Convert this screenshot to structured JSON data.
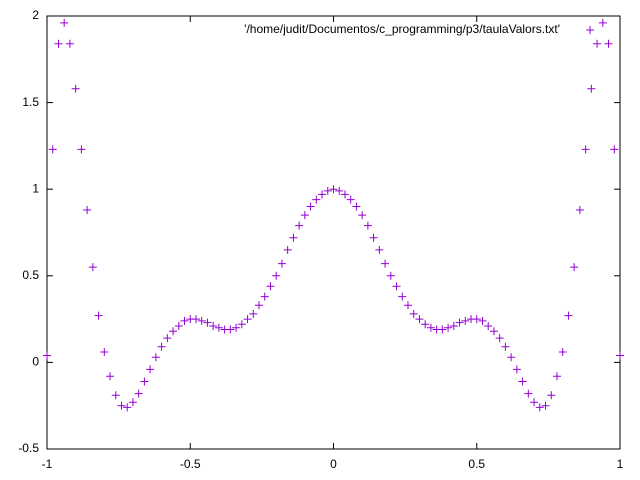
{
  "chart_data": {
    "type": "scatter",
    "x": [
      -1,
      -0.98,
      -0.96,
      -0.94,
      -0.92,
      -0.9,
      -0.88,
      -0.86,
      -0.84,
      -0.82,
      -0.8,
      -0.78,
      -0.76,
      -0.74,
      -0.72,
      -0.7,
      -0.68,
      -0.66,
      -0.64,
      -0.62,
      -0.6,
      -0.58,
      -0.56,
      -0.54,
      -0.52,
      -0.5,
      -0.48,
      -0.46,
      -0.44,
      -0.42,
      -0.4,
      -0.38,
      -0.36,
      -0.34,
      -0.32,
      -0.3,
      -0.28,
      -0.26,
      -0.24,
      -0.22,
      -0.2,
      -0.18,
      -0.16,
      -0.14,
      -0.12,
      -0.1,
      -0.08,
      -0.06,
      -0.04,
      -0.02,
      0,
      0.02,
      0.04,
      0.06,
      0.08,
      0.1,
      0.12,
      0.14,
      0.16,
      0.18,
      0.2,
      0.22,
      0.24,
      0.26,
      0.28,
      0.3,
      0.32,
      0.34,
      0.36,
      0.38,
      0.4,
      0.42,
      0.44,
      0.46,
      0.48,
      0.5,
      0.52,
      0.54,
      0.56,
      0.58,
      0.6,
      0.62,
      0.64,
      0.66,
      0.68,
      0.7,
      0.72,
      0.74,
      0.76,
      0.78,
      0.8,
      0.82,
      0.84,
      0.86,
      0.88,
      0.9,
      0.92,
      0.94,
      0.96,
      0.98,
      1
    ],
    "series": [
      {
        "name": "'/home/judit/Documentos/c_programming/p3/taulaValors.txt'",
        "color": "#9400d3",
        "values": [
          0.04,
          1.23,
          1.84,
          1.96,
          1.84,
          1.58,
          1.23,
          0.88,
          0.55,
          0.27,
          0.06,
          -0.08,
          -0.19,
          -0.25,
          -0.26,
          -0.23,
          -0.18,
          -0.11,
          -0.04,
          0.03,
          0.09,
          0.14,
          0.18,
          0.21,
          0.24,
          0.25,
          0.25,
          0.24,
          0.23,
          0.21,
          0.2,
          0.19,
          0.19,
          0.2,
          0.22,
          0.25,
          0.28,
          0.33,
          0.38,
          0.44,
          0.5,
          0.57,
          0.65,
          0.72,
          0.79,
          0.85,
          0.9,
          0.94,
          0.97,
          0.99,
          1.0,
          0.99,
          0.97,
          0.94,
          0.9,
          0.85,
          0.79,
          0.72,
          0.65,
          0.57,
          0.5,
          0.44,
          0.38,
          0.33,
          0.28,
          0.25,
          0.22,
          0.2,
          0.19,
          0.19,
          0.2,
          0.21,
          0.23,
          0.24,
          0.25,
          0.25,
          0.24,
          0.21,
          0.18,
          0.14,
          0.09,
          0.03,
          -0.04,
          -0.11,
          -0.18,
          -0.23,
          -0.26,
          -0.25,
          -0.19,
          -0.08,
          0.06,
          0.27,
          0.55,
          0.88,
          1.23,
          1.58,
          1.84,
          1.96,
          1.84,
          1.23,
          0.04
        ]
      }
    ],
    "xlim": [
      -1,
      1
    ],
    "xticks": [
      -1,
      -0.5,
      0,
      0.5,
      1
    ],
    "ylim": [
      -0.5,
      2
    ],
    "yticks": [
      -0.5,
      0,
      0.5,
      1,
      1.5,
      2
    ],
    "legend": "top-right"
  }
}
